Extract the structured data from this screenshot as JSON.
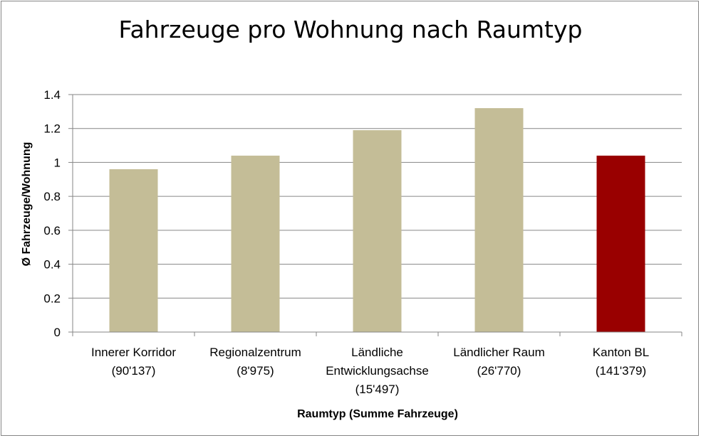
{
  "chart_data": {
    "type": "bar",
    "title": "Fahrzeuge pro Wohnung nach Raumtyp",
    "xlabel": "Raumtyp (Summe Fahrzeuge)",
    "ylabel": "Ø Fahrzeuge/Wohnung",
    "ylim": [
      0,
      1.4
    ],
    "yticks": [
      "0",
      "0.2",
      "0.4",
      "0.6",
      "0.8",
      "1",
      "1.2",
      "1.4"
    ],
    "grid": true,
    "legend": "none",
    "categories": [
      [
        "Innerer Korridor",
        "(90'137)"
      ],
      [
        "Regionalzentrum",
        "(8'975)"
      ],
      [
        "Ländliche",
        "Entwicklungsachse",
        "(15'497)"
      ],
      [
        "Ländlicher Raum",
        "(26'770)"
      ],
      [
        "Kanton BL",
        "(141'379)"
      ]
    ],
    "values": [
      0.96,
      1.04,
      1.19,
      1.32,
      1.04
    ],
    "colors": [
      "#c4bd97",
      "#c4bd97",
      "#c4bd97",
      "#c4bd97",
      "#990000"
    ]
  }
}
